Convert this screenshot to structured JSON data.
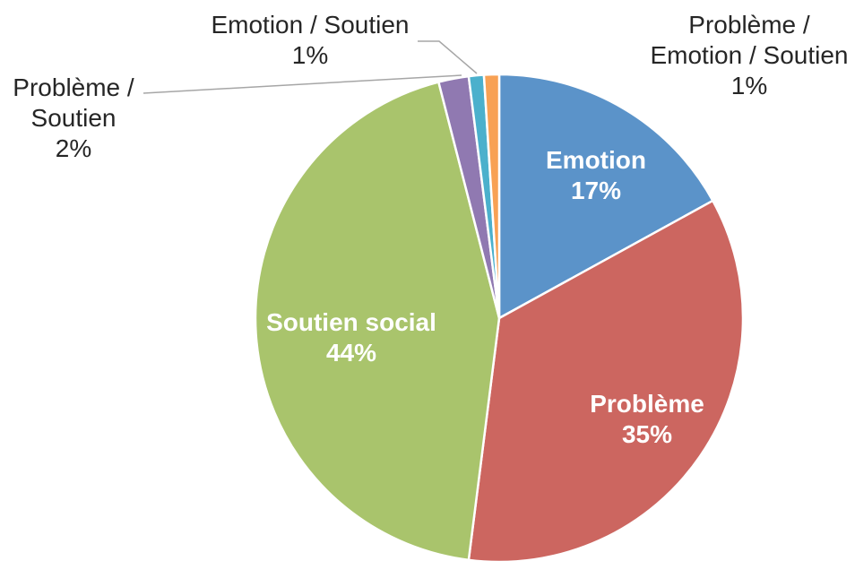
{
  "chart_data": {
    "type": "pie",
    "categories": [
      "Emotion",
      "Problème",
      "Soutien social",
      "Problème / Soutien",
      "Emotion / Soutien",
      "Problème / Emotion / Soutien"
    ],
    "values": [
      17,
      35,
      44,
      2,
      1,
      1
    ],
    "value_labels": [
      "17%",
      "35%",
      "44%",
      "2%",
      "1%",
      "1%"
    ],
    "colors": [
      "#5b93c9",
      "#cc6660",
      "#a9c46c",
      "#9079b1",
      "#4bb0cc",
      "#f8a154"
    ]
  }
}
